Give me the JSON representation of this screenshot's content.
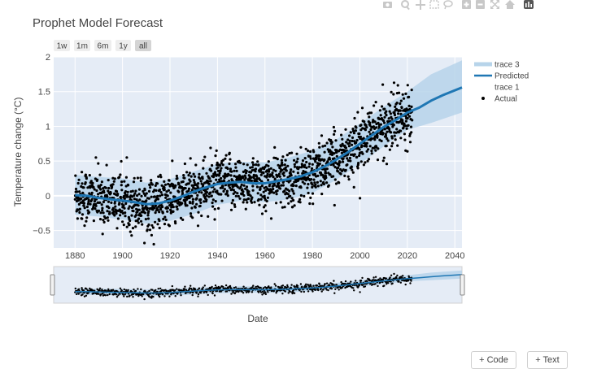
{
  "chart_data": {
    "type": "line",
    "title": "Prophet Model Forecast",
    "xlabel": "Date",
    "ylabel": "Temperature change (°C)",
    "xlim": [
      1871,
      2043
    ],
    "ylim": [
      -0.75,
      2
    ],
    "x_ticks": [
      "1880",
      "1900",
      "1920",
      "1940",
      "1960",
      "1980",
      "2000",
      "2020",
      "2040"
    ],
    "y_ticks": [
      "−0.5",
      "0",
      "0.5",
      "1",
      "1.5",
      "2"
    ],
    "grid": true,
    "legend_position": "right",
    "range_selector": [
      "1w",
      "1m",
      "6m",
      "1y",
      "all"
    ],
    "range_selector_active": "all",
    "series": [
      {
        "name": "trace 3",
        "kind": "uncertainty band",
        "color": "#b7d4ea",
        "x": [
          1880,
          1890,
          1900,
          1910,
          1920,
          1930,
          1940,
          1950,
          1960,
          1970,
          1980,
          1990,
          2000,
          2010,
          2020,
          2030,
          2043
        ],
        "lower": [
          -0.27,
          -0.3,
          -0.34,
          -0.4,
          -0.36,
          -0.26,
          -0.13,
          -0.07,
          -0.09,
          -0.05,
          0.04,
          0.23,
          0.46,
          0.71,
          0.95,
          1.05,
          1.2
        ],
        "upper": [
          0.3,
          0.27,
          0.25,
          0.19,
          0.24,
          0.35,
          0.46,
          0.49,
          0.48,
          0.55,
          0.65,
          0.81,
          1.04,
          1.28,
          1.5,
          1.75,
          1.95
        ]
      },
      {
        "name": "Predicted",
        "kind": "line",
        "color": "#1f77b4",
        "x": [
          1880,
          1885,
          1890,
          1895,
          1900,
          1905,
          1910,
          1915,
          1920,
          1925,
          1930,
          1935,
          1940,
          1945,
          1950,
          1955,
          1960,
          1965,
          1970,
          1975,
          1980,
          1985,
          1990,
          1995,
          2000,
          2005,
          2010,
          2015,
          2020,
          2025,
          2030,
          2035,
          2043
        ],
        "y": [
          0.01,
          0.0,
          -0.03,
          -0.05,
          -0.07,
          -0.09,
          -0.12,
          -0.11,
          -0.07,
          -0.01,
          0.06,
          0.12,
          0.17,
          0.19,
          0.2,
          0.18,
          0.18,
          0.21,
          0.24,
          0.28,
          0.34,
          0.42,
          0.52,
          0.63,
          0.75,
          0.87,
          0.99,
          1.09,
          1.2,
          1.27,
          1.37,
          1.45,
          1.56
        ]
      },
      {
        "name": "trace 1",
        "kind": "hidden",
        "color": "#ffffff"
      },
      {
        "name": "Actual",
        "kind": "markers",
        "color": "#000000",
        "x_range": [
          1880,
          2022
        ],
        "spread": 0.19,
        "n_points": 1700,
        "peak": {
          "x": 2016,
          "y": 1.59
        }
      }
    ]
  },
  "toolbar": {
    "icons": [
      "camera-icon",
      "zoom-icon",
      "pan-icon",
      "box-select-icon",
      "lasso-icon",
      "zoom-in-icon",
      "zoom-out-icon",
      "autoscale-icon",
      "home-icon",
      "plotly-logo-icon"
    ]
  },
  "bottom_buttons": {
    "code_label": "+ Code",
    "text_label": "+ Text"
  }
}
